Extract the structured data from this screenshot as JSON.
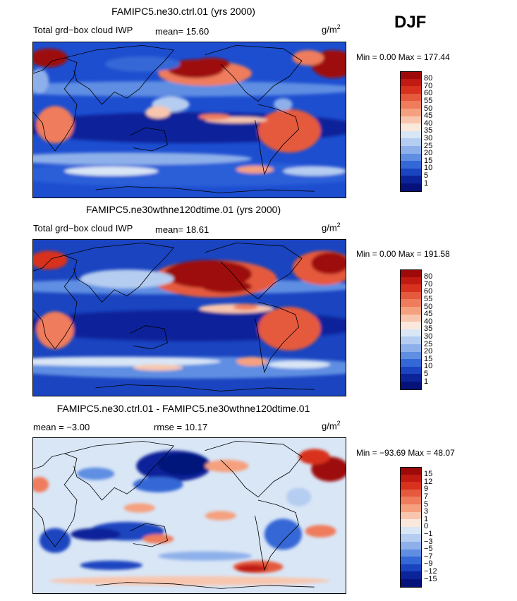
{
  "season": "DJF",
  "panels": [
    {
      "title": "FAMIPC5.ne30.ctrl.01 (yrs 2000)",
      "variable": "Total grd−box cloud IWP",
      "stat": "mean=  15.60",
      "unit_base": "g/m",
      "unit_exp": "2",
      "minmax": "Min =    0.00 Max = 177.44",
      "colorbar": {
        "labels": [
          "80",
          "70",
          "60",
          "55",
          "50",
          "45",
          "40",
          "35",
          "30",
          "25",
          "20",
          "15",
          "10",
          "5",
          "1"
        ],
        "colors": [
          "#9e0a0a",
          "#c01a12",
          "#d8321e",
          "#e55a3c",
          "#ef7c5c",
          "#f5a07e",
          "#f8c6ae",
          "#fbe8dc",
          "#d9e6f6",
          "#b5cdf0",
          "#8eb0ea",
          "#5f8ee2",
          "#3468d6",
          "#1a44c0",
          "#0c249a",
          "#06127a"
        ]
      },
      "field": "ctrl"
    },
    {
      "title": "FAMIPC5.ne30wthne120dtime.01 (yrs 2000)",
      "variable": "Total grd−box cloud IWP",
      "stat": "mean=  18.61",
      "unit_base": "g/m",
      "unit_exp": "2",
      "minmax": "Min =    0.00 Max = 191.58",
      "colorbar": {
        "labels": [
          "80",
          "70",
          "60",
          "55",
          "50",
          "45",
          "40",
          "35",
          "30",
          "25",
          "20",
          "15",
          "10",
          "5",
          "1"
        ],
        "colors": [
          "#9e0a0a",
          "#c01a12",
          "#d8321e",
          "#e55a3c",
          "#ef7c5c",
          "#f5a07e",
          "#f8c6ae",
          "#fbe8dc",
          "#d9e6f6",
          "#b5cdf0",
          "#8eb0ea",
          "#5f8ee2",
          "#3468d6",
          "#1a44c0",
          "#0c249a",
          "#06127a"
        ]
      },
      "field": "test"
    },
    {
      "title": "FAMIPC5.ne30.ctrl.01 - FAMIPC5.ne30wthne120dtime.01",
      "stat_mean": "mean =  −3.00",
      "stat_rmse": "rmse =  10.17",
      "unit_base": "g/m",
      "unit_exp": "2",
      "minmax": "Min = −93.69 Max =  48.07",
      "colorbar": {
        "labels": [
          "15",
          "12",
          "9",
          "7",
          "5",
          "3",
          "1",
          "0",
          "−1",
          "−3",
          "−5",
          "−7",
          "−9",
          "−12",
          "−15"
        ],
        "colors": [
          "#9e0a0a",
          "#c01a12",
          "#d8321e",
          "#e55a3c",
          "#ef7c5c",
          "#f5a07e",
          "#f8c6ae",
          "#fbe8dc",
          "#d9e6f6",
          "#b5cdf0",
          "#8eb0ea",
          "#5f8ee2",
          "#3468d6",
          "#1a44c0",
          "#0c249a",
          "#06127a"
        ]
      },
      "field": "diff"
    }
  ]
}
